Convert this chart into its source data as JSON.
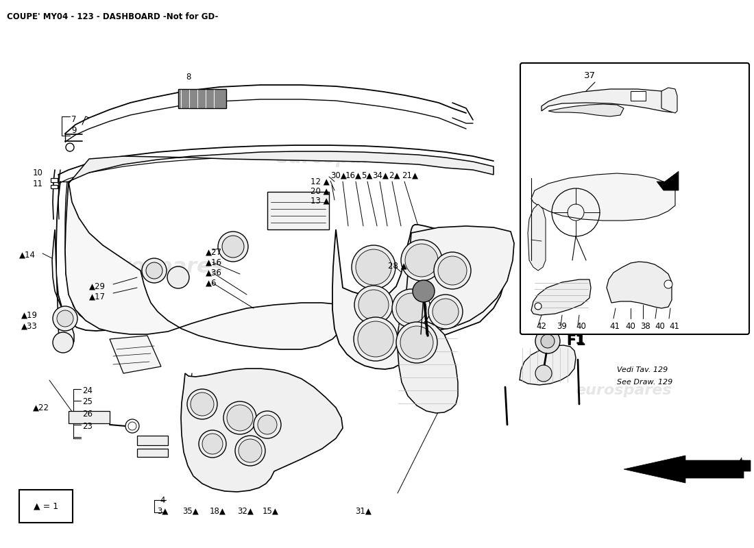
{
  "title": "COUPE' MY04 - 123 - DASHBOARD -Not for GD-",
  "title_fontsize": 8.5,
  "title_fontweight": "bold",
  "bg_color": "#ffffff",
  "fig_width": 11.0,
  "fig_height": 8.0,
  "watermark_text": "eurospares",
  "watermark_color": "#c8c8c8",
  "watermark_alpha": 0.45,
  "legend_text": "▲ = 1",
  "f1_label": "F1",
  "note_text": "Vedi Tav. 129\nSee Draw. 129"
}
